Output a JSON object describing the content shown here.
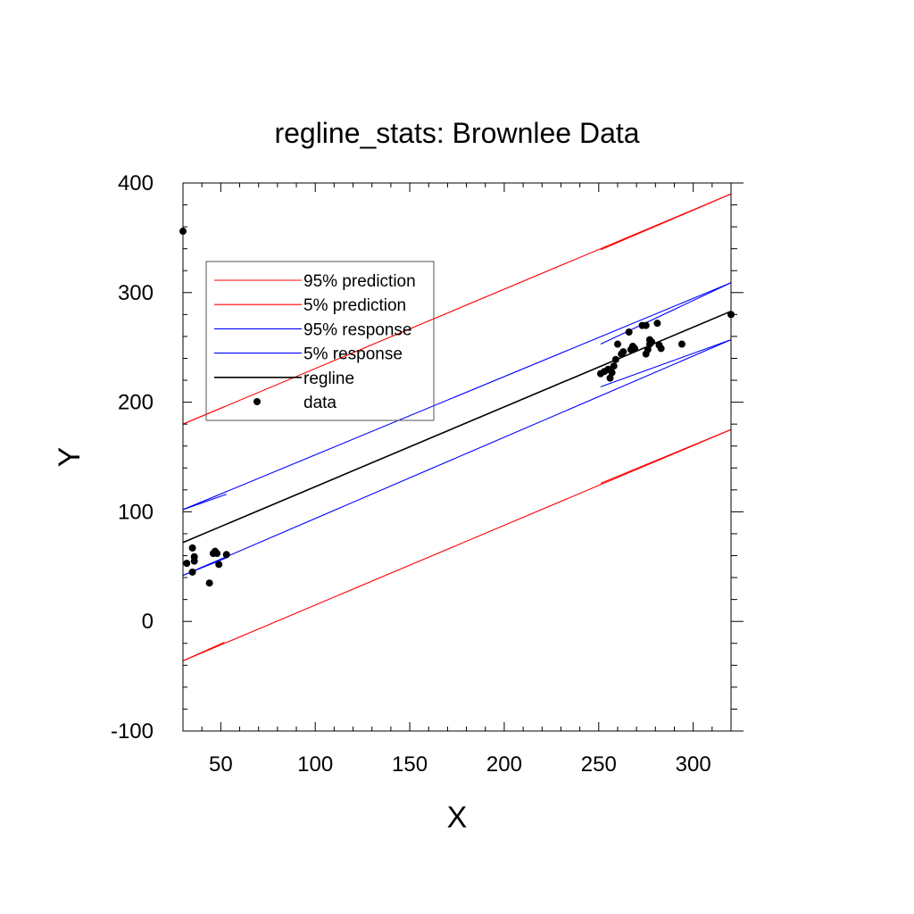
{
  "chart_data": {
    "type": "scatter",
    "title": "regline_stats: Brownlee Data",
    "xlabel": "X",
    "ylabel": "Y",
    "xlim": [
      30,
      320
    ],
    "ylim": [
      -100,
      400
    ],
    "x_ticks": [
      50,
      100,
      150,
      200,
      250,
      300
    ],
    "y_ticks": [
      -100,
      0,
      100,
      200,
      300,
      400
    ],
    "grid": false,
    "legend_position": "upper-left",
    "legend": [
      {
        "label": "95% prediction",
        "kind": "line",
        "color": "#ff0000"
      },
      {
        "label": "5% prediction",
        "kind": "line",
        "color": "#ff0000"
      },
      {
        "label": "95% response",
        "kind": "line",
        "color": "#0000ff"
      },
      {
        "label": "5% response",
        "kind": "line",
        "color": "#0000ff"
      },
      {
        "label": "regline",
        "kind": "line",
        "color": "#000000"
      },
      {
        "label": "data",
        "kind": "marker",
        "color": "#000000"
      }
    ],
    "lines": [
      {
        "name": "95% prediction",
        "color": "#ff0000",
        "x": [
          30,
          320
        ],
        "y": [
          180,
          390
        ]
      },
      {
        "name": "95% prediction",
        "color": "#ff0000",
        "x": [
          30,
          52
        ],
        "y": [
          180,
          196
        ]
      },
      {
        "name": "95% prediction",
        "color": "#ff0000",
        "x": [
          251,
          320
        ],
        "y": [
          339,
          390
        ]
      },
      {
        "name": "5% prediction",
        "color": "#ff0000",
        "x": [
          30,
          320
        ],
        "y": [
          -36,
          175
        ]
      },
      {
        "name": "5% prediction",
        "color": "#ff0000",
        "x": [
          30,
          52
        ],
        "y": [
          -36,
          -19
        ]
      },
      {
        "name": "5% prediction",
        "color": "#ff0000",
        "x": [
          251,
          320
        ],
        "y": [
          126,
          175
        ]
      },
      {
        "name": "95% response",
        "color": "#0000ff",
        "x": [
          30,
          320
        ],
        "y": [
          102,
          309
        ]
      },
      {
        "name": "95% response",
        "color": "#0000ff",
        "x": [
          30,
          53
        ],
        "y": [
          102,
          116
        ]
      },
      {
        "name": "95% response",
        "color": "#0000ff",
        "x": [
          251,
          320
        ],
        "y": [
          253,
          309
        ]
      },
      {
        "name": "5% response",
        "color": "#0000ff",
        "x": [
          30,
          320
        ],
        "y": [
          42,
          257
        ]
      },
      {
        "name": "5% response",
        "color": "#0000ff",
        "x": [
          30,
          53
        ],
        "y": [
          42,
          58
        ]
      },
      {
        "name": "5% response",
        "color": "#0000ff",
        "x": [
          251,
          320
        ],
        "y": [
          214,
          257
        ]
      },
      {
        "name": "regline",
        "color": "#000000",
        "x": [
          30,
          320
        ],
        "y": [
          72,
          283
        ]
      }
    ],
    "points": {
      "name": "data",
      "color": "#000000",
      "x": [
        30,
        32,
        35,
        35,
        36,
        36,
        44,
        46,
        47,
        48,
        49,
        53,
        251,
        253,
        255,
        256,
        257,
        258,
        259,
        260,
        262,
        263,
        266,
        267,
        268,
        269,
        273,
        275,
        275,
        276,
        277,
        277,
        278,
        281,
        282,
        283,
        294,
        320
      ],
      "y": [
        356,
        53,
        45,
        67,
        55,
        59,
        35,
        62,
        64,
        62,
        52,
        61,
        226,
        228,
        230,
        222,
        227,
        233,
        239,
        253,
        244,
        246,
        264,
        248,
        251,
        249,
        270,
        244,
        270,
        248,
        253,
        257,
        255,
        272,
        252,
        249,
        253,
        280
      ]
    }
  }
}
